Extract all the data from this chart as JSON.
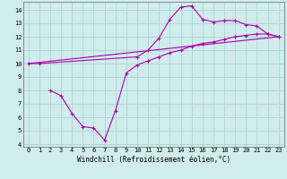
{
  "bg_color": "#d0ecec",
  "grid_color": "#b0d8d8",
  "line_color": "#aa00aa",
  "xlim": [
    -0.5,
    23.5
  ],
  "ylim": [
    3.8,
    14.6
  ],
  "xlabel": "Windchill (Refroidissement éolien,°C)",
  "xticks": [
    0,
    1,
    2,
    3,
    4,
    5,
    6,
    7,
    8,
    9,
    10,
    11,
    12,
    13,
    14,
    15,
    16,
    17,
    18,
    19,
    20,
    21,
    22,
    23
  ],
  "yticks": [
    4,
    5,
    6,
    7,
    8,
    9,
    10,
    11,
    12,
    13,
    14
  ],
  "line1_x": [
    0,
    1,
    10,
    11,
    12,
    13,
    14,
    15,
    16,
    17,
    18,
    19,
    20,
    21,
    22,
    23
  ],
  "line1_y": [
    10.0,
    10.0,
    10.5,
    11.0,
    11.9,
    13.3,
    14.2,
    14.3,
    13.3,
    13.1,
    13.2,
    13.2,
    12.9,
    12.8,
    12.2,
    12.0
  ],
  "line2_x": [
    0,
    23
  ],
  "line2_y": [
    10.0,
    12.0
  ],
  "line3_x": [
    2,
    3,
    4,
    5,
    6,
    7,
    8,
    9,
    10,
    11,
    12,
    13,
    14,
    15,
    16,
    17,
    18,
    19,
    20,
    21,
    22,
    23
  ],
  "line3_y": [
    8.0,
    7.6,
    6.3,
    5.3,
    5.2,
    4.3,
    6.5,
    9.3,
    9.9,
    10.2,
    10.5,
    10.8,
    11.0,
    11.3,
    11.5,
    11.6,
    11.8,
    12.0,
    12.1,
    12.2,
    12.2,
    12.0
  ],
  "marker": "+",
  "markersize": 3.5,
  "markeredgewidth": 0.8,
  "linewidth": 0.8,
  "xlabel_fontsize": 5.5,
  "tick_fontsize": 5.0
}
